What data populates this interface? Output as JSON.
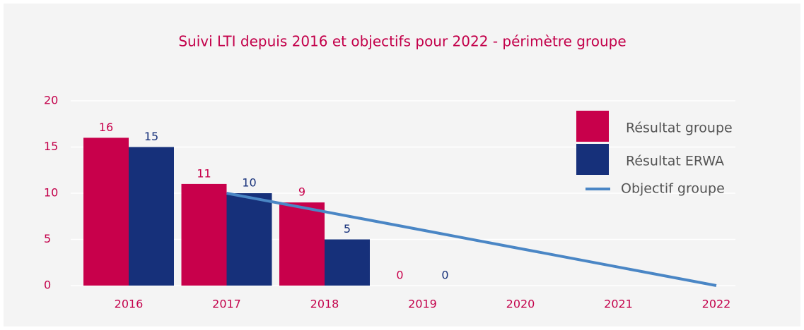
{
  "chart_data": {
    "type": "bar",
    "title": "Suivi LTI depuis 2016 et objectifs pour 2022 - périmètre groupe",
    "categories": [
      "2016",
      "2017",
      "2018",
      "2019",
      "2020",
      "2021",
      "2022"
    ],
    "series": [
      {
        "name": "Résultat groupe",
        "color": "#c8004b",
        "type": "bar",
        "values": [
          16,
          11,
          9,
          0,
          null,
          null,
          null
        ]
      },
      {
        "name": "Résultat ERWA",
        "color": "#16307a",
        "type": "bar",
        "values": [
          15,
          10,
          5,
          0,
          null,
          null,
          null
        ]
      },
      {
        "name": "Objectif groupe",
        "color": "#4a86c5",
        "type": "line",
        "values": [
          null,
          10,
          8,
          6,
          4,
          2,
          0
        ]
      }
    ],
    "ylim": [
      0,
      20
    ],
    "yticks": [
      0,
      5,
      10,
      15,
      20
    ],
    "grid": true,
    "legend": "right"
  }
}
